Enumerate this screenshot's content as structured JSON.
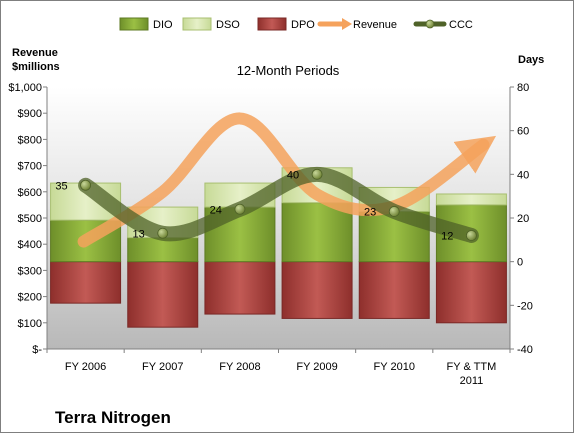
{
  "chart_data": {
    "type": "bar",
    "title": "12-Month Periods",
    "company": "Terra Nitrogen",
    "left_axis_label": [
      "Revenue",
      "$millions"
    ],
    "right_axis_label": "Days",
    "left_axis": {
      "min": 0,
      "max": 1000,
      "step": 100,
      "tick_labels": [
        "$-",
        "$100",
        "$200",
        "$300",
        "$400",
        "$500",
        "$600",
        "$700",
        "$800",
        "$900",
        "$1,000"
      ]
    },
    "right_axis": {
      "min": -40,
      "max": 80,
      "step": 20,
      "tick_labels": [
        "-40",
        "-20",
        "0",
        "20",
        "40",
        "60",
        "80"
      ]
    },
    "categories": [
      "FY 2006",
      "FY 2007",
      "FY 2008",
      "FY 2009",
      "FY 2010",
      "FY & TTM 2011"
    ],
    "legend": [
      "DIO",
      "DSO",
      "DPO",
      "Revenue",
      "CCC"
    ],
    "legend_position": "top",
    "grid": false,
    "series": [
      {
        "name": "DIO",
        "type": "stacked-bar",
        "axis": "right",
        "color": "#8db43a",
        "values": [
          19,
          11,
          25,
          27,
          23,
          26
        ]
      },
      {
        "name": "DSO",
        "type": "stacked-bar",
        "axis": "right",
        "color": "#d8e8b0",
        "values": [
          17,
          14,
          11,
          16,
          11,
          5
        ]
      },
      {
        "name": "DPO",
        "type": "stacked-bar-negative",
        "axis": "right",
        "color": "#c0504d",
        "values": [
          -19,
          -30,
          -24,
          -26,
          -26,
          -28
        ]
      },
      {
        "name": "Revenue",
        "type": "line",
        "axis": "left",
        "color": "#f79646",
        "values": [
          410,
          600,
          880,
          590,
          545,
          780
        ]
      },
      {
        "name": "CCC",
        "type": "line",
        "axis": "right",
        "color": "#4f6228",
        "values": [
          35,
          13,
          24,
          40,
          23,
          12
        ],
        "labels": [
          "35",
          "13",
          "24",
          "40",
          "23",
          "12"
        ]
      }
    ]
  }
}
